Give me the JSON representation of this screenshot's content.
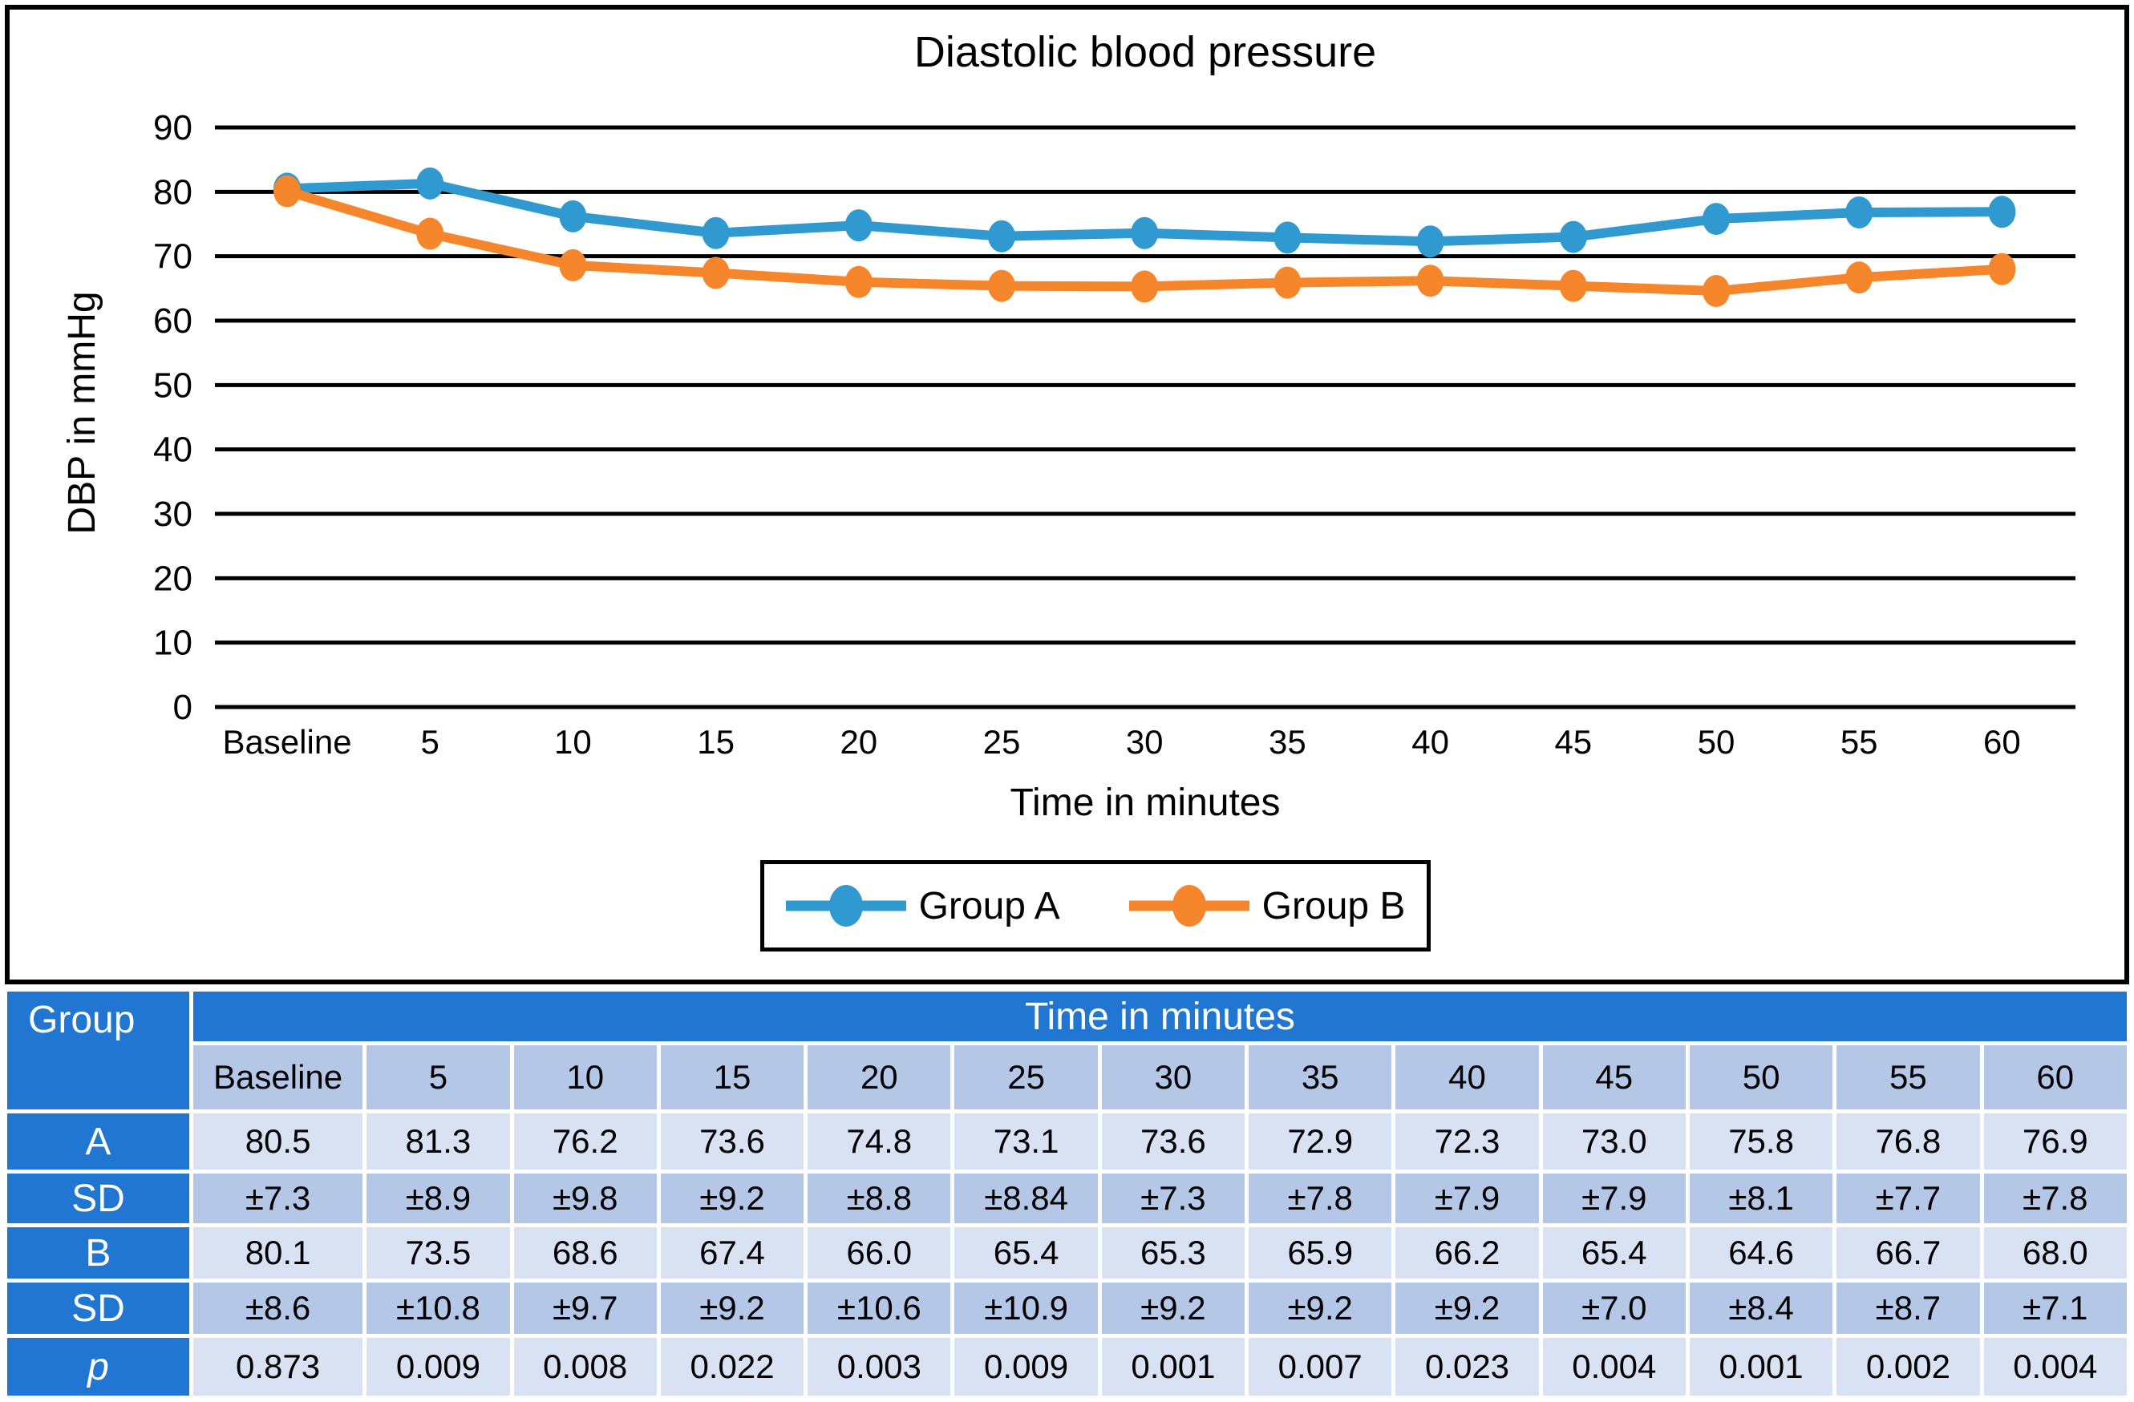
{
  "chart_data": {
    "type": "line",
    "title": "Diastolic blood pressure",
    "xlabel": "Time in minutes",
    "ylabel": "DBP in mmHg",
    "x_categories": [
      "Baseline",
      "5",
      "10",
      "15",
      "20",
      "25",
      "30",
      "35",
      "40",
      "45",
      "50",
      "55",
      "60"
    ],
    "y_ticks": [
      0,
      10,
      20,
      30,
      40,
      50,
      60,
      70,
      80,
      90
    ],
    "ylim": [
      0,
      95
    ],
    "grid": "horizontal-black-lines",
    "legend_position": "bottom-boxed",
    "series": [
      {
        "name": "Group A",
        "color": "#2F99D0",
        "values": [
          80.5,
          81.3,
          76.2,
          73.6,
          74.8,
          73.1,
          73.6,
          72.9,
          72.3,
          73.0,
          75.8,
          76.8,
          76.9
        ]
      },
      {
        "name": "Group B",
        "color": "#F6862B",
        "values": [
          80.1,
          73.5,
          68.6,
          67.4,
          66.0,
          65.4,
          65.3,
          65.9,
          66.2,
          65.4,
          64.6,
          66.7,
          68.0
        ]
      }
    ]
  },
  "table": {
    "group_header": "Group",
    "time_header": "Time in minutes",
    "columns": [
      "Baseline",
      "5",
      "10",
      "15",
      "20",
      "25",
      "30",
      "35",
      "40",
      "45",
      "50",
      "55",
      "60"
    ],
    "rows": [
      {
        "label": "A",
        "italic": false,
        "shade": "light",
        "values": [
          "80.5",
          "81.3",
          "76.2",
          "73.6",
          "74.8",
          "73.1",
          "73.6",
          "72.9",
          "72.3",
          "73.0",
          "75.8",
          "76.8",
          "76.9"
        ]
      },
      {
        "label": "SD",
        "italic": false,
        "shade": "medium",
        "values": [
          "±7.3",
          "±8.9",
          "±9.8",
          "±9.2",
          "±8.8",
          "±8.84",
          "±7.3",
          "±7.8",
          "±7.9",
          "±7.9",
          "±8.1",
          "±7.7",
          "±7.8"
        ]
      },
      {
        "label": "B",
        "italic": false,
        "shade": "light",
        "values": [
          "80.1",
          "73.5",
          "68.6",
          "67.4",
          "66.0",
          "65.4",
          "65.3",
          "65.9",
          "66.2",
          "65.4",
          "64.6",
          "66.7",
          "68.0"
        ]
      },
      {
        "label": "SD",
        "italic": false,
        "shade": "medium",
        "values": [
          "±8.6",
          "±10.8",
          "±9.7",
          "±9.2",
          "±10.6",
          "±10.9",
          "±9.2",
          "±9.2",
          "±9.2",
          "±7.0",
          "±8.4",
          "±8.7",
          "±7.1"
        ]
      },
      {
        "label": "p",
        "italic": true,
        "shade": "light",
        "values": [
          "0.873",
          "0.009",
          "0.008",
          "0.022",
          "0.003",
          "0.009",
          "0.001",
          "0.007",
          "0.023",
          "0.004",
          "0.001",
          "0.002",
          "0.004"
        ]
      }
    ],
    "colors": {
      "header_blue": "#2176D2",
      "row_light": "#D9E2F2",
      "row_medium": "#B4C7E7"
    }
  }
}
